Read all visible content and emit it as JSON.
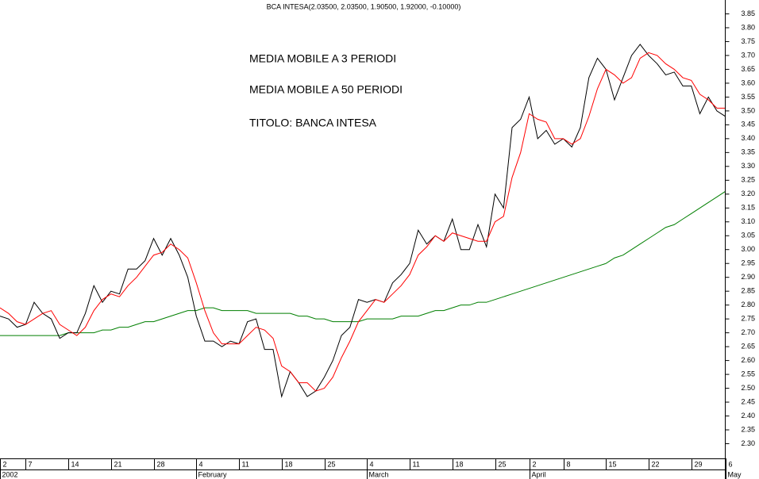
{
  "chart_data": {
    "type": "line",
    "title": "BCA INTESA(2.03500, 2.03500, 1.90500, 1.92000, -0.10000)",
    "categories": [
      "2",
      null,
      null,
      "7",
      null,
      null,
      null,
      null,
      "14",
      null,
      null,
      null,
      null,
      "21",
      null,
      null,
      null,
      null,
      "28",
      null,
      null,
      null,
      null,
      "4",
      null,
      null,
      null,
      null,
      "11",
      null,
      null,
      null,
      null,
      "18",
      null,
      null,
      null,
      null,
      "25",
      null,
      null,
      null,
      null,
      "4",
      null,
      null,
      null,
      null,
      "11",
      null,
      null,
      null,
      null,
      "18",
      null,
      null,
      null,
      null,
      "25",
      null,
      null,
      null,
      "2",
      null,
      null,
      null,
      "8",
      null,
      null,
      null,
      null,
      "15",
      null,
      null,
      null,
      null,
      "22",
      null,
      null,
      null,
      null,
      "29",
      null,
      null,
      null,
      "6"
    ],
    "month_labels": [
      "2002",
      null,
      null,
      null,
      null,
      null,
      null,
      null,
      null,
      null,
      null,
      null,
      null,
      null,
      null,
      null,
      null,
      null,
      null,
      null,
      null,
      null,
      null,
      "February",
      null,
      null,
      null,
      null,
      null,
      null,
      null,
      null,
      null,
      null,
      null,
      null,
      null,
      null,
      null,
      null,
      null,
      null,
      null,
      "March",
      null,
      null,
      null,
      null,
      null,
      null,
      null,
      null,
      null,
      null,
      null,
      null,
      null,
      null,
      null,
      null,
      null,
      null,
      "April",
      null,
      null,
      null,
      null,
      null,
      null,
      null,
      null,
      null,
      null,
      null,
      null,
      null,
      null,
      null,
      null,
      null,
      null,
      null,
      null,
      null,
      null,
      "May"
    ],
    "series": [
      {
        "name": "TITOLO: BANCA INTESA",
        "color": "#000000",
        "values": [
          2.76,
          2.75,
          2.72,
          2.73,
          2.81,
          2.77,
          2.75,
          2.68,
          2.7,
          2.7,
          2.77,
          2.87,
          2.81,
          2.85,
          2.84,
          2.93,
          2.93,
          2.96,
          3.04,
          2.98,
          3.04,
          2.98,
          2.9,
          2.76,
          2.67,
          2.67,
          2.65,
          2.67,
          2.66,
          2.74,
          2.75,
          2.64,
          2.64,
          2.47,
          2.56,
          2.52,
          2.47,
          2.49,
          2.54,
          2.6,
          2.69,
          2.72,
          2.82,
          2.81,
          2.82,
          2.81,
          2.88,
          2.91,
          2.95,
          3.07,
          3.02,
          3.05,
          3.03,
          3.11,
          3.0,
          3.0,
          3.09,
          3.01,
          3.2,
          3.15,
          3.44,
          3.47,
          3.55,
          3.4,
          3.43,
          3.38,
          3.4,
          3.37,
          3.44,
          3.62,
          3.69,
          3.65,
          3.54,
          3.62,
          3.7,
          3.74,
          3.7,
          3.67,
          3.63,
          3.64,
          3.59,
          3.59,
          3.49,
          3.55,
          3.5,
          3.48
        ]
      },
      {
        "name": "MEDIA MOBILE A 3 PERIODI",
        "color": "#ff0000",
        "values": [
          2.79,
          2.77,
          2.74,
          2.73,
          2.75,
          2.77,
          2.78,
          2.73,
          2.71,
          2.69,
          2.72,
          2.78,
          2.82,
          2.84,
          2.83,
          2.87,
          2.9,
          2.94,
          2.98,
          2.99,
          3.02,
          3.0,
          2.97,
          2.88,
          2.78,
          2.7,
          2.66,
          2.66,
          2.66,
          2.69,
          2.72,
          2.71,
          2.68,
          2.58,
          2.56,
          2.52,
          2.52,
          2.49,
          2.5,
          2.54,
          2.61,
          2.67,
          2.74,
          2.78,
          2.82,
          2.81,
          2.84,
          2.87,
          2.91,
          2.98,
          3.01,
          3.05,
          3.03,
          3.06,
          3.05,
          3.04,
          3.03,
          3.03,
          3.1,
          3.12,
          3.26,
          3.35,
          3.49,
          3.47,
          3.46,
          3.4,
          3.4,
          3.38,
          3.4,
          3.48,
          3.58,
          3.65,
          3.63,
          3.6,
          3.62,
          3.69,
          3.71,
          3.7,
          3.67,
          3.65,
          3.62,
          3.61,
          3.56,
          3.54,
          3.51,
          3.51
        ]
      },
      {
        "name": "MEDIA MOBILE A 50 PERIODI",
        "color": "#007f00",
        "values": [
          2.69,
          2.69,
          2.69,
          2.69,
          2.69,
          2.69,
          2.69,
          2.69,
          2.7,
          2.7,
          2.7,
          2.7,
          2.71,
          2.71,
          2.72,
          2.72,
          2.73,
          2.74,
          2.74,
          2.75,
          2.76,
          2.77,
          2.78,
          2.78,
          2.79,
          2.79,
          2.78,
          2.78,
          2.78,
          2.78,
          2.77,
          2.77,
          2.77,
          2.77,
          2.77,
          2.76,
          2.76,
          2.75,
          2.75,
          2.74,
          2.74,
          2.74,
          2.74,
          2.75,
          2.75,
          2.75,
          2.75,
          2.76,
          2.76,
          2.76,
          2.77,
          2.78,
          2.78,
          2.79,
          2.8,
          2.8,
          2.81,
          2.81,
          2.82,
          2.83,
          2.84,
          2.85,
          2.86,
          2.87,
          2.88,
          2.89,
          2.9,
          2.91,
          2.92,
          2.93,
          2.94,
          2.95,
          2.97,
          2.98,
          3.0,
          3.02,
          3.04,
          3.06,
          3.08,
          3.09,
          3.11,
          3.13,
          3.15,
          3.17,
          3.19,
          3.21
        ]
      }
    ],
    "ylim": [
      2.25,
      3.9
    ],
    "yticks": [
      {
        "value": 2.3,
        "label": "2.30"
      },
      {
        "value": 2.35,
        "label": "2.35"
      },
      {
        "value": 2.4,
        "label": "2.40"
      },
      {
        "value": 2.45,
        "label": "2.45"
      },
      {
        "value": 2.5,
        "label": "2.50"
      },
      {
        "value": 2.55,
        "label": "2.55"
      },
      {
        "value": 2.6,
        "label": "2.60"
      },
      {
        "value": 2.65,
        "label": "2.65"
      },
      {
        "value": 2.7,
        "label": "2.70"
      },
      {
        "value": 2.75,
        "label": "2.75"
      },
      {
        "value": 2.8,
        "label": "2.80"
      },
      {
        "value": 2.85,
        "label": "2.85"
      },
      {
        "value": 2.9,
        "label": "2.90"
      },
      {
        "value": 2.95,
        "label": "2.95"
      },
      {
        "value": 3.0,
        "label": "3.00"
      },
      {
        "value": 3.05,
        "label": "3.05"
      },
      {
        "value": 3.1,
        "label": "3.10"
      },
      {
        "value": 3.15,
        "label": "3.15"
      },
      {
        "value": 3.2,
        "label": "3.20"
      },
      {
        "value": 3.25,
        "label": "3.25"
      },
      {
        "value": 3.3,
        "label": "3.30"
      },
      {
        "value": 3.35,
        "label": "3.35"
      },
      {
        "value": 3.4,
        "label": "3.40"
      },
      {
        "value": 3.45,
        "label": "3.45"
      },
      {
        "value": 3.5,
        "label": "3.50"
      },
      {
        "value": 3.55,
        "label": "3.55"
      },
      {
        "value": 3.6,
        "label": "3.60"
      },
      {
        "value": 3.65,
        "label": "3.65"
      },
      {
        "value": 3.7,
        "label": "3.70"
      },
      {
        "value": 3.75,
        "label": "3.75"
      },
      {
        "value": 3.8,
        "label": "3.80"
      },
      {
        "value": 3.85,
        "label": "3.85"
      }
    ],
    "grid": false
  }
}
